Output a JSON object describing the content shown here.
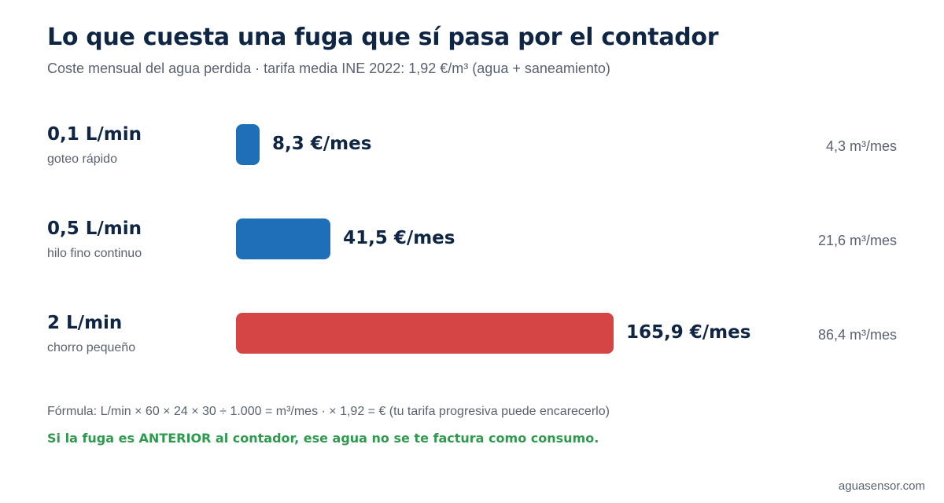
{
  "chart_data": {
    "type": "bar",
    "orientation": "horizontal",
    "title": "Lo que cuesta una fuga que sí pasa por el contador",
    "subtitle": "Coste mensual del agua perdida · tarifa media INE 2022: 1,92 €/m³ (agua + saneamiento)",
    "categories": [
      "0,1 L/min",
      "0,5 L/min",
      "2 L/min"
    ],
    "descriptions": [
      "goteo rápido",
      "hilo fino continuo",
      "chorro pequeño"
    ],
    "values": [
      8.3,
      41.5,
      165.9
    ],
    "value_labels": [
      "8,3 €/mes",
      "41,5 €/mes",
      "165,9 €/mes"
    ],
    "volume_labels": [
      "4,3 m³/mes",
      "21,6 m³/mes",
      "86,4 m³/mes"
    ],
    "colors": [
      "#1f6fb8",
      "#1f6fb8",
      "#d64545"
    ],
    "grid": false
  },
  "footer": {
    "formula": "Fórmula: L/min × 60 × 24 × 30 ÷ 1.000 = m³/mes · × 1,92 = € (tu tarifa progresiva puede encarecerlo)",
    "note": "Si la fuga es ANTERIOR al contador, ese agua no se te factura como consumo.",
    "source": "aguasensor.com"
  }
}
